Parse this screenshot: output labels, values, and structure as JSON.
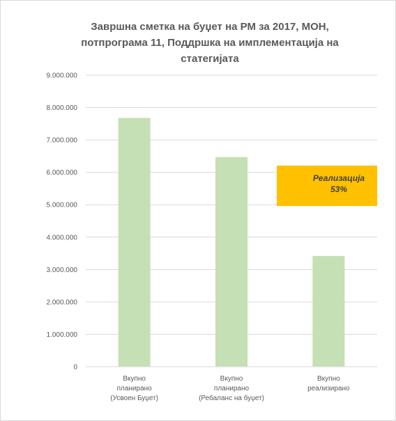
{
  "chart_data": {
    "type": "bar",
    "title_lines": [
      "Завршна сметка на буџет на РМ за 2017, МОН,",
      "потпрограма 11, Поддршка на имплементација на",
      "статегијата"
    ],
    "categories": [
      [
        "Вкупно",
        "планирано",
        "(Усвоен Буџет)"
      ],
      [
        "Вкупно",
        "планирано",
        "(Ребаланс на буџет)"
      ],
      [
        "Вкупно",
        "реализирано"
      ]
    ],
    "values": [
      7680000,
      6470000,
      3420000
    ],
    "ylim": [
      0,
      9000000
    ],
    "yticks": [
      0,
      1000000,
      2000000,
      3000000,
      4000000,
      5000000,
      6000000,
      7000000,
      8000000,
      9000000
    ],
    "ytick_labels": [
      "0",
      "1.000.000",
      "2.000.000",
      "3.000.000",
      "4.000.000",
      "5.000.000",
      "6.000.000",
      "7.000.000",
      "8.000.000",
      "9.000.000"
    ],
    "grid": true,
    "bar_color": "#c5e0b4",
    "gridline_color": "#d9d9d9",
    "annotation": {
      "lines": [
        "Реализација",
        "53%"
      ],
      "background": "#ffc000"
    }
  }
}
